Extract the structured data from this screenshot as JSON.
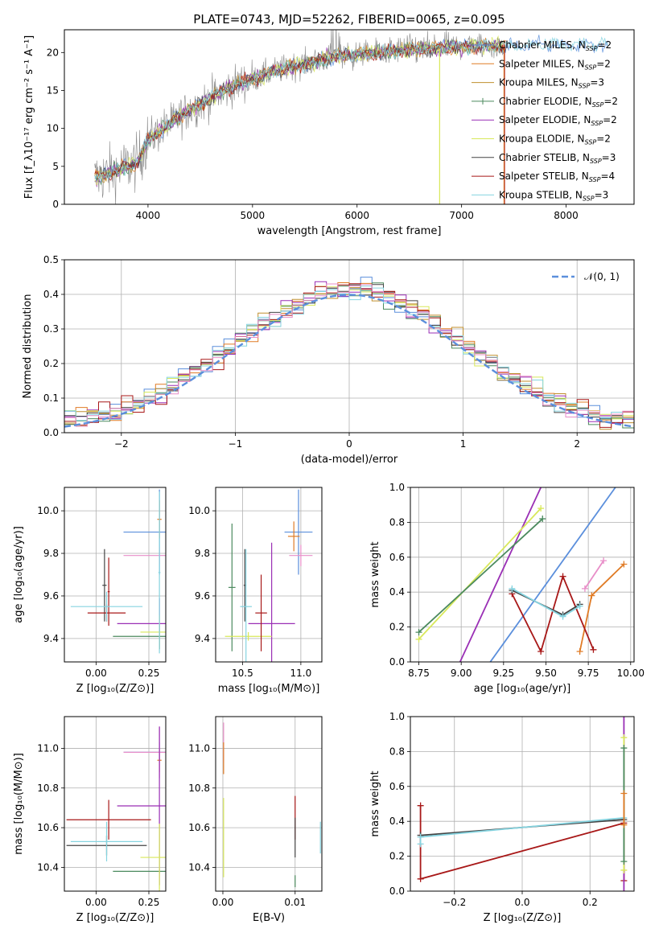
{
  "title": "PLATE=0743, MJD=52262, FIBERID=0065, z=0.095",
  "colors": {
    "chabrier_miles": "#5b8fdc",
    "salpeter_miles": "#e07b25",
    "kroupa_miles": "#c08f2e",
    "chabrier_elodie": "#4b8a5e",
    "salpeter_elodie": "#9a2fb5",
    "kroupa_elodie": "#d8e85a",
    "chabrier_stelib": "#444444",
    "salpeter_stelib": "#a81818",
    "kroupa_stelib": "#86d4e0",
    "pink": "#e88ec8",
    "spectrum_gray": "#8a8a8a"
  },
  "chart_data": [
    {
      "id": "spectrum",
      "type": "line",
      "xlabel": "wavelength [Angstrom, rest frame]",
      "ylabel": "Flux [f_λ10⁻¹⁷ erg cm⁻² s⁻¹ A⁻¹]",
      "xlim": [
        3200,
        8650
      ],
      "ylim": [
        0,
        23
      ],
      "xticks": [
        "4000",
        "5000",
        "6000",
        "7000",
        "8000"
      ],
      "yticks": [
        "0",
        "5",
        "10",
        "15",
        "20"
      ],
      "legend_position": "top-right",
      "legend": [
        "Chabrier MILES, N_SSP=2",
        "Salpeter MILES, N_SSP=2",
        "Kroupa MILES, N_SSP=3",
        "Chabrier ELODIE, N_SSP=2",
        "Salpeter ELODIE, N_SSP=2",
        "Kroupa ELODIE, N_SSP=2",
        "Chabrier STELIB, N_SSP=3",
        "Salpeter STELIB, N_SSP=4",
        "Kroupa STELIB, N_SSP=3"
      ],
      "continuum": {
        "x": [
          3500,
          3700,
          3900,
          4000,
          4200,
          4400,
          4600,
          4800,
          5000,
          5200,
          5400,
          5600,
          5800,
          6000,
          6200,
          6400,
          6600,
          6800,
          7000,
          7200,
          7400,
          7600,
          7800,
          8000,
          8200,
          8400
        ],
        "y": [
          3.5,
          4.5,
          5.5,
          8.5,
          10.5,
          12.5,
          14.0,
          15.5,
          16.5,
          17.5,
          18.2,
          18.8,
          19.5,
          19.7,
          20.0,
          20.3,
          20.5,
          20.6,
          20.8,
          20.9,
          20.8,
          20.9,
          21.0,
          21.0,
          21.0,
          21.0
        ]
      }
    },
    {
      "id": "residuals",
      "type": "bar",
      "xlabel": "(data-model)/error",
      "ylabel": "Normed distribution",
      "xlim": [
        -2.5,
        2.5
      ],
      "ylim": [
        0,
        0.5
      ],
      "xticks": [
        "−2",
        "−1",
        "0",
        "1",
        "2"
      ],
      "yticks": [
        "0.0",
        "0.1",
        "0.2",
        "0.3",
        "0.4",
        "0.5"
      ],
      "grid": true,
      "legend_position": "top-right",
      "legend": [
        "𝒩(0, 1)"
      ],
      "reference": {
        "name": "𝒩(0, 1)",
        "mean": 0,
        "sigma": 1
      }
    },
    {
      "id": "age_vs_Z",
      "type": "scatter",
      "xlabel": "Z [log₁₀(Z/Z⊙)]",
      "ylabel": "age  [log₁₀(age/yr)]",
      "xlim": [
        -0.15,
        0.33
      ],
      "ylim": [
        9.29,
        10.11
      ],
      "xticks": [
        "0.00",
        "0.25"
      ],
      "yticks": [
        "9.4",
        "9.6",
        "9.8",
        "10.0"
      ],
      "grid": true,
      "points": [
        {
          "series": "chabrier_miles",
          "x": 0.3,
          "y": 9.9,
          "xerr": 0.17,
          "yerr": 0.2
        },
        {
          "series": "salpeter_miles",
          "x": 0.3,
          "y": 9.96,
          "xerr": 0.01,
          "yerr": 0.09
        },
        {
          "series": "pink",
          "x": 0.3,
          "y": 9.79,
          "xerr": 0.17,
          "yerr": 0.04
        },
        {
          "series": "chabrier_elodie",
          "x": 0.3,
          "y": 9.41,
          "xerr": 0.22,
          "yerr": 0.06
        },
        {
          "series": "salpeter_elodie",
          "x": 0.3,
          "y": 9.47,
          "xerr": 0.2,
          "yerr": 0.12
        },
        {
          "series": "kroupa_elodie",
          "x": 0.3,
          "y": 9.43,
          "xerr": 0.09,
          "yerr": 0.08
        },
        {
          "series": "chabrier_stelib",
          "x": 0.04,
          "y": 9.65,
          "xerr": 0.01,
          "yerr": 0.17
        },
        {
          "series": "salpeter_stelib",
          "x": 0.05,
          "y": 9.52,
          "xerr": 0.09,
          "yerr": 0.04
        },
        {
          "series": "salpeter_stelib_2",
          "x": 0.06,
          "y": 9.62,
          "xerr": 0.005,
          "yerr": 0.16
        },
        {
          "series": "kroupa_stelib",
          "x": 0.05,
          "y": 9.55,
          "xerr": 0.17,
          "yerr": 0.07
        },
        {
          "series": "kroupa_stelib_2",
          "x": 0.3,
          "y": 9.71,
          "xerr": 0.005,
          "yerr": 0.38
        }
      ]
    },
    {
      "id": "age_vs_mass",
      "type": "scatter",
      "xlabel": "mass [log₁₀(M/M⊙)]",
      "xlim": [
        10.27,
        11.18
      ],
      "ylim": [
        9.29,
        10.11
      ],
      "xticks": [
        "10.5",
        "11.0"
      ],
      "yticks": [
        "9.4",
        "9.6",
        "9.8",
        "10.0"
      ],
      "grid": true,
      "points": [
        {
          "series": "chabrier_miles",
          "x": 10.98,
          "y": 9.9,
          "xerr": 0.12,
          "yerr": 0.2
        },
        {
          "series": "salpeter_miles",
          "x": 10.94,
          "y": 9.88,
          "xerr": 0.05,
          "yerr": 0.07
        },
        {
          "series": "pink",
          "x": 11.0,
          "y": 9.79,
          "xerr": 0.1,
          "yerr": 0.05
        },
        {
          "series": "chabrier_elodie",
          "x": 10.41,
          "y": 9.64,
          "xerr": 0.03,
          "yerr": 0.3
        },
        {
          "series": "salpeter_elodie",
          "x": 10.75,
          "y": 9.47,
          "xerr": 0.2,
          "yerr": 0.38
        },
        {
          "series": "kroupa_elodie",
          "x": 10.55,
          "y": 9.41,
          "xerr": 0.2,
          "yerr": 0.02
        },
        {
          "series": "chabrier_stelib",
          "x": 10.52,
          "y": 9.65,
          "xerr": 0.01,
          "yerr": 0.17
        },
        {
          "series": "salpeter_stelib",
          "x": 10.66,
          "y": 9.52,
          "xerr": 0.05,
          "yerr": 0.18
        },
        {
          "series": "kroupa_stelib",
          "x": 10.53,
          "y": 9.55,
          "xerr": 0.05,
          "yerr": 0.27
        }
      ]
    },
    {
      "id": "weight_vs_age",
      "type": "line",
      "xlabel": "age  [log₁₀(age/yr)]",
      "ylabel": "mass weight",
      "xlim": [
        8.7,
        10.02
      ],
      "ylim": [
        0,
        1
      ],
      "xticks": [
        "8.75",
        "9.00",
        "9.25",
        "9.50",
        "9.75",
        "10.00"
      ],
      "yticks": [
        "0.0",
        "0.2",
        "0.4",
        "0.6",
        "0.8",
        "1.0"
      ],
      "grid": true,
      "series": [
        {
          "color": "chabrier_miles",
          "x": [
            8.95,
            9.91
          ],
          "y": [
            -0.3,
            1.0
          ],
          "markers": false
        },
        {
          "color": "salpeter_elodie",
          "x": [
            8.85,
            9.47
          ],
          "y": [
            -0.3,
            1.0
          ],
          "markers": false
        },
        {
          "color": "kroupa_elodie",
          "x": [
            8.75,
            9.47
          ],
          "y": [
            0.13,
            0.88
          ],
          "markers": true
        },
        {
          "color": "chabrier_elodie",
          "x": [
            8.75,
            9.48
          ],
          "y": [
            0.17,
            0.82
          ],
          "markers": true
        },
        {
          "color": "salpeter_miles",
          "x": [
            9.7,
            9.77,
            9.96
          ],
          "y": [
            0.06,
            0.38,
            0.56
          ],
          "markers": true
        },
        {
          "color": "pink",
          "x": [
            9.73,
            9.84
          ],
          "y": [
            0.42,
            0.58
          ],
          "markers": true
        },
        {
          "color": "salpeter_stelib",
          "x": [
            9.3,
            9.47,
            9.6,
            9.78
          ],
          "y": [
            0.39,
            0.06,
            0.49,
            0.07
          ],
          "markers": true
        },
        {
          "color": "chabrier_stelib",
          "x": [
            9.3,
            9.6,
            9.7
          ],
          "y": [
            0.41,
            0.27,
            0.33
          ],
          "markers": true
        },
        {
          "color": "kroupa_stelib",
          "x": [
            9.3,
            9.6,
            9.7
          ],
          "y": [
            0.42,
            0.26,
            0.32
          ],
          "markers": true
        }
      ]
    },
    {
      "id": "mass_vs_Z",
      "type": "scatter",
      "xlabel": "Z [log₁₀(Z/Z⊙)]",
      "ylabel": "mass [log₁₀(M/M⊙)]",
      "xlim": [
        -0.15,
        0.33
      ],
      "ylim": [
        10.28,
        11.16
      ],
      "xticks": [
        "0.00",
        "0.25"
      ],
      "yticks": [
        "10.4",
        "10.6",
        "10.8",
        "11.0"
      ],
      "grid": true,
      "points": [
        {
          "series": "chabrier_miles",
          "x": 0.3,
          "y": 10.98,
          "xerr": 0.17,
          "yerr": 0.05
        },
        {
          "series": "salpeter_miles",
          "x": 0.3,
          "y": 10.94,
          "xerr": 0.01,
          "yerr": 0.06
        },
        {
          "series": "pink",
          "x": 0.3,
          "y": 10.98,
          "xerr": 0.17,
          "yerr": 0.13
        },
        {
          "series": "chabrier_elodie",
          "x": 0.3,
          "y": 10.38,
          "xerr": 0.22,
          "yerr": 0.01
        },
        {
          "series": "salpeter_elodie",
          "x": 0.3,
          "y": 10.71,
          "xerr": 0.2,
          "yerr": 0.4
        },
        {
          "series": "kroupa_elodie",
          "x": 0.3,
          "y": 10.45,
          "xerr": 0.09,
          "yerr": 0.17
        },
        {
          "series": "chabrier_stelib",
          "x": 0.05,
          "y": 10.51,
          "xerr": 0.19,
          "yerr": 0.05
        },
        {
          "series": "salpeter_stelib",
          "x": 0.06,
          "y": 10.64,
          "xerr": 0.2,
          "yerr": 0.1
        },
        {
          "series": "kroupa_stelib",
          "x": 0.05,
          "y": 10.53,
          "xerr": 0.17,
          "yerr": 0.1
        }
      ]
    },
    {
      "id": "mass_vs_ebv",
      "type": "scatter",
      "xlabel": "E(B-V)",
      "xlim": [
        -0.001,
        0.0137
      ],
      "ylim": [
        10.28,
        11.16
      ],
      "xticks": [
        "0.00",
        "0.01"
      ],
      "yticks": [
        "10.4",
        "10.6",
        "10.8",
        "11.0"
      ],
      "grid": true,
      "points": [
        {
          "series": "pink",
          "x": 0.0001,
          "y": 11.03,
          "xerr": 0,
          "yerr": 0.1
        },
        {
          "series": "salpeter_miles",
          "x": 0.0001,
          "y": 10.95,
          "xerr": 0,
          "yerr": 0.08
        },
        {
          "series": "kroupa_elodie",
          "x": 0.0001,
          "y": 10.55,
          "xerr": 0,
          "yerr": 0.2
        },
        {
          "series": "chabrier_elodie",
          "x": 0.01,
          "y": 10.33,
          "xerr": 0,
          "yerr": 0.03
        },
        {
          "series": "salpeter_stelib",
          "x": 0.01,
          "y": 10.65,
          "xerr": 0,
          "yerr": 0.11
        },
        {
          "series": "chabrier_stelib",
          "x": 0.01,
          "y": 10.55,
          "xerr": 0,
          "yerr": 0.1
        },
        {
          "series": "kroupa_stelib",
          "x": 0.0135,
          "y": 10.55,
          "xerr": 0,
          "yerr": 0.08
        }
      ]
    },
    {
      "id": "weight_vs_Z",
      "type": "line",
      "xlabel": "Z [log₁₀(Z/Z⊙)]",
      "ylabel": "mass weight",
      "xlim": [
        -0.33,
        0.33
      ],
      "ylim": [
        0,
        1
      ],
      "xticks": [
        "−0.2",
        "0.0",
        "0.2"
      ],
      "yticks": [
        "0.0",
        "0.2",
        "0.4",
        "0.6",
        "0.8",
        "1.0"
      ],
      "grid": true,
      "series": [
        {
          "color": "salpeter_stelib",
          "x": [
            -0.3,
            -0.3,
            0.3,
            0.3
          ],
          "y": [
            0.49,
            0.07,
            0.39,
            0.06
          ],
          "markers": true
        },
        {
          "color": "chabrier_stelib",
          "x": [
            -0.3,
            0.3
          ],
          "y": [
            0.32,
            0.41
          ],
          "markers": true
        },
        {
          "color": "kroupa_stelib",
          "x": [
            -0.3,
            -0.3,
            0.3
          ],
          "y": [
            0.27,
            0.31,
            0.42
          ],
          "markers": true
        },
        {
          "color": "salpeter_elodie",
          "x": [
            0.3,
            0.3
          ],
          "y": [
            0.0,
            1.0
          ],
          "markers": false
        },
        {
          "color": "kroupa_elodie",
          "x": [
            0.3,
            0.3
          ],
          "y": [
            0.12,
            0.88
          ],
          "markers": true
        },
        {
          "color": "chabrier_elodie",
          "x": [
            0.3,
            0.3
          ],
          "y": [
            0.17,
            0.82
          ],
          "markers": true
        },
        {
          "color": "salpeter_miles",
          "x": [
            0.3,
            0.3
          ],
          "y": [
            0.38,
            0.56
          ],
          "markers": true
        }
      ]
    }
  ]
}
